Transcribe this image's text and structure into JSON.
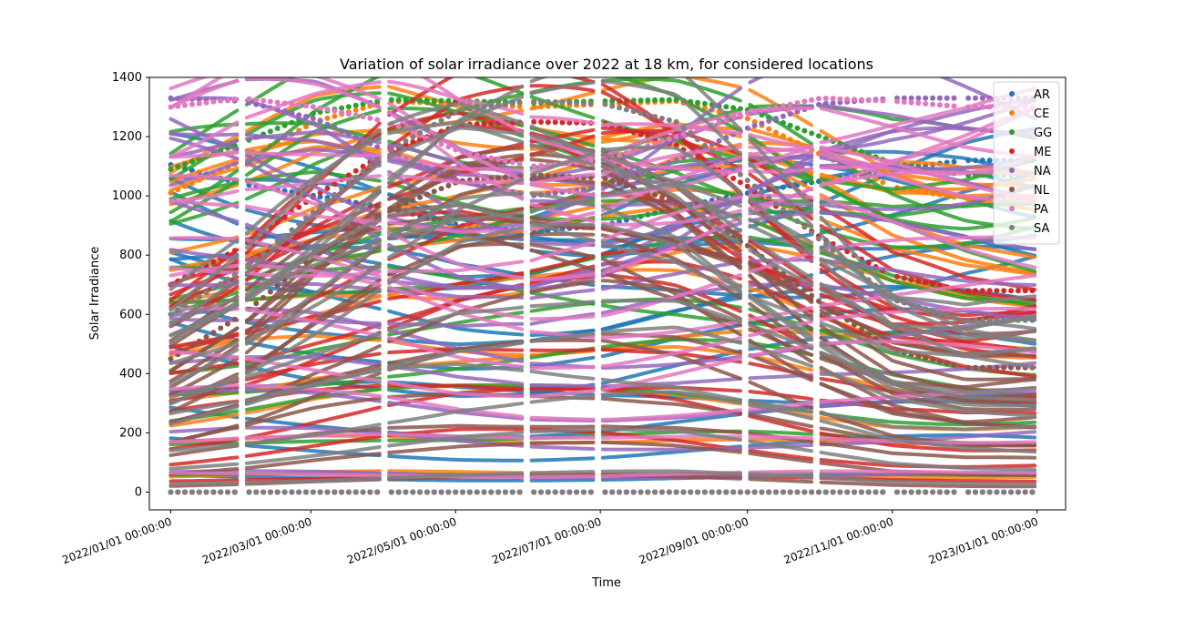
{
  "chart_data": {
    "type": "scatter",
    "title": "Variation of solar irradiance over 2022 at 18 km, for considered locations",
    "xlabel": "Time",
    "ylabel": "Solar Irradiance",
    "xlim": [
      "2021-12-23",
      "2023-01-13"
    ],
    "ylim": [
      -60,
      1400
    ],
    "y_ticks": [
      0,
      200,
      400,
      600,
      800,
      1000,
      1200,
      1400
    ],
    "x_ticks": [
      {
        "date": "2022-01-01",
        "label": "2022/01/01 00:00:00"
      },
      {
        "date": "2022-03-01",
        "label": "2022/03/01 00:00:00"
      },
      {
        "date": "2022-05-01",
        "label": "2022/05/01 00:00:00"
      },
      {
        "date": "2022-07-01",
        "label": "2022/07/01 00:00:00"
      },
      {
        "date": "2022-09-01",
        "label": "2022/09/01 00:00:00"
      },
      {
        "date": "2022-11-01",
        "label": "2022/11/01 00:00:00"
      },
      {
        "date": "2023-01-01",
        "label": "2023/01/01 00:00:00"
      }
    ],
    "x_tick_rotation_deg": -20,
    "grid": false,
    "legend_position": "top-right",
    "gaps_between_segments": [
      "2022-01-31",
      "2022-03-01",
      "2022-04-01",
      "2022-04-30",
      "2022-05-31",
      "2022-06-30",
      "2022-07-31",
      "2022-08-31",
      "2022-09-30",
      "2022-10-31",
      "2022-11-30"
    ],
    "series": [
      {
        "name": "AR",
        "color": "#1f77b4",
        "peak_by_month": [
          1105,
          1040,
          1000,
          960,
          900,
          880,
          900,
          960,
          1010,
          1050,
          1090,
          1120
        ]
      },
      {
        "name": "CE",
        "color": "#ff7f0e",
        "peak_by_month": [
          1010,
          1120,
          1250,
          1320,
          1310,
          1300,
          1310,
          1320,
          1260,
          1140,
          1030,
          990
        ]
      },
      {
        "name": "GG",
        "color": "#2ca02c",
        "peak_by_month": [
          1090,
          1180,
          1280,
          1325,
          1320,
          1315,
          1320,
          1325,
          1290,
          1200,
          1110,
          1070
        ]
      },
      {
        "name": "ME",
        "color": "#d62728",
        "peak_by_month": [
          700,
          830,
          1000,
          1150,
          1240,
          1250,
          1245,
          1170,
          1030,
          860,
          730,
          680
        ]
      },
      {
        "name": "NA",
        "color": "#9467bd",
        "peak_by_month": [
          1330,
          1320,
          1260,
          1150,
          1050,
          1000,
          1030,
          1120,
          1230,
          1310,
          1330,
          1330
        ]
      },
      {
        "name": "NL",
        "color": "#8c564b",
        "peak_by_month": [
          450,
          600,
          800,
          950,
          1050,
          1070,
          1060,
          980,
          830,
          640,
          480,
          420
        ]
      },
      {
        "name": "PA",
        "color": "#e377c2",
        "peak_by_month": [
          1300,
          1330,
          1300,
          1250,
          1150,
          1100,
          1120,
          1200,
          1280,
          1330,
          1320,
          1300
        ]
      },
      {
        "name": "SA",
        "color": "#7f7f7f",
        "peak_by_month": [
          600,
          750,
          950,
          1150,
          1290,
          1320,
          1310,
          1250,
          1050,
          850,
          650,
          580
        ]
      }
    ]
  }
}
